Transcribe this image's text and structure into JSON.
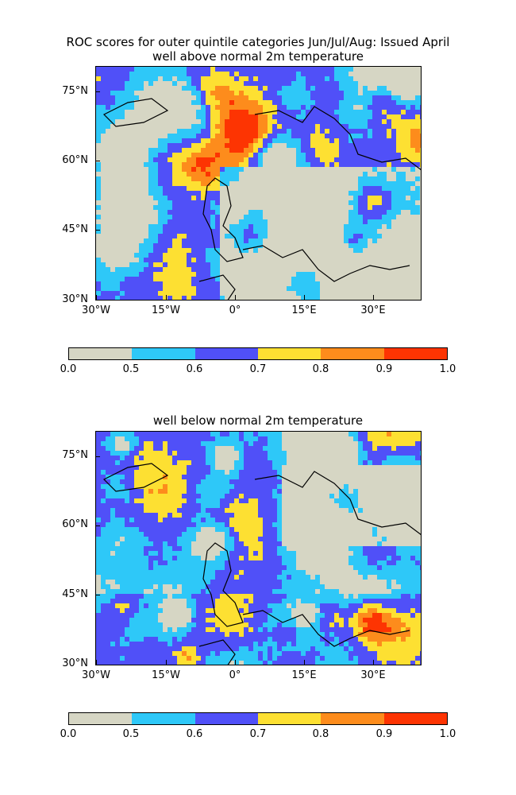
{
  "figure": {
    "title_line1": "ROC scores for outer quintile categories Jun/Jul/Aug: Issued April",
    "panels": [
      {
        "title": "well above normal 2m temperature",
        "lat_ticks": [
          "75°N",
          "60°N",
          "45°N",
          "30°N"
        ],
        "lon_ticks": [
          "30°W",
          "15°W",
          "0°",
          "15°E",
          "30°E"
        ]
      },
      {
        "title": "well below normal 2m temperature",
        "lat_ticks": [
          "75°N",
          "60°N",
          "45°N",
          "30°N"
        ],
        "lon_ticks": [
          "30°W",
          "15°W",
          "0°",
          "15°E",
          "30°E"
        ]
      }
    ],
    "colorbar": {
      "tick_labels": [
        "0.0",
        "0.5",
        "0.6",
        "0.7",
        "0.8",
        "0.9",
        "1.0"
      ],
      "colors": [
        "#d6d6c4",
        "#2ec8f8",
        "#5050f8",
        "#fde032",
        "#fd8c1c",
        "#fd3402"
      ]
    }
  }
}
